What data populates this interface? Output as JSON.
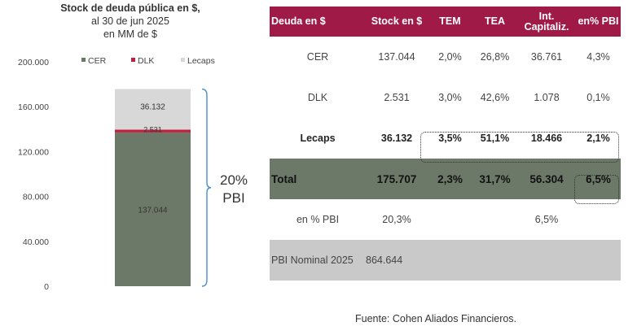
{
  "chart_data": {
    "type": "bar",
    "stacked": true,
    "title": "Stock de deuda pública en $,",
    "subtitle_1": "al 30 de jun 2025",
    "subtitle_2": "en MM de $",
    "y_ticks": [
      "200.000",
      "160.000",
      "120.000",
      "80.000",
      "40.000",
      "0"
    ],
    "y_tick_values": [
      200000,
      160000,
      120000,
      80000,
      40000,
      0
    ],
    "ylim": [
      0,
      200000
    ],
    "legend_position": "top",
    "series": [
      {
        "name": "CER",
        "value": 137044,
        "label": "137.044",
        "color": "#6d7968"
      },
      {
        "name": "DLK",
        "value": 2531,
        "label": "2.531",
        "color": "#c0203e"
      },
      {
        "name": "Lecaps",
        "value": 36132,
        "label": "36.132",
        "color": "#d8d8d8"
      }
    ],
    "annotation": {
      "line1": "20%",
      "line2": "PBI"
    }
  },
  "table": {
    "headers": [
      "Deuda en $",
      "Stock en $",
      "TEM",
      "TEA",
      "Int. Capitaliz.",
      "en% PBI"
    ],
    "rows": [
      [
        "CER",
        "137.044",
        "2,0%",
        "26,8%",
        "36.761",
        "4,3%"
      ],
      [
        "DLK",
        "2.531",
        "3,0%",
        "42,6%",
        "1.078",
        "0,1%"
      ],
      [
        "Lecaps",
        "36.132",
        "3,5%",
        "51,1%",
        "18.466",
        "2,1%"
      ],
      [
        "Total",
        "175.707",
        "2,3%",
        "31,7%",
        "56.304",
        "6,5%"
      ],
      [
        "en % PBI",
        "20,3%",
        "",
        "",
        "6,5%",
        ""
      ],
      [
        "PBI Nominal 2025",
        "864.644",
        "",
        "",
        "",
        ""
      ]
    ]
  },
  "source": "Fuente: Cohen Aliados Financieros.",
  "colors": {
    "header": "#a01a48",
    "total_row": "#6d7968",
    "pbi_row": "#c9c9c9"
  }
}
